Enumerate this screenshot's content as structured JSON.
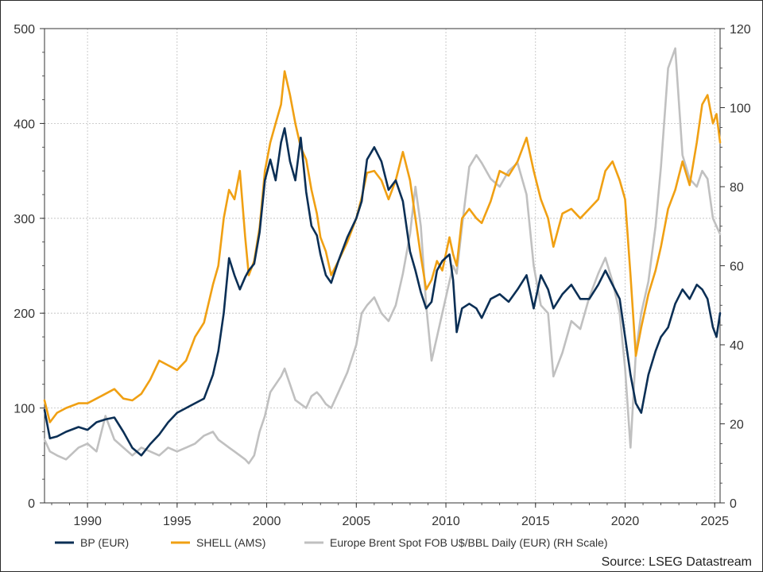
{
  "chart_data": {
    "type": "line",
    "title": "",
    "xlabel": "",
    "ylabel_left": "",
    "ylabel_right": "",
    "xlim": [
      1987.6,
      2025.3
    ],
    "ylim_left": [
      0,
      500
    ],
    "ylim_right": [
      0,
      120
    ],
    "grid": true,
    "legend_position": "bottom",
    "x_ticks": [
      1990,
      1995,
      2000,
      2005,
      2010,
      2015,
      2020,
      2025
    ],
    "x_tick_labels": [
      "1990",
      "1995",
      "2000",
      "2005",
      "2010",
      "2015",
      "2020",
      "2025"
    ],
    "y_left_ticks": [
      0,
      100,
      200,
      300,
      400,
      500
    ],
    "y_left_tick_labels": [
      "0",
      "100",
      "200",
      "300",
      "400",
      "500"
    ],
    "y_right_ticks": [
      0,
      20,
      40,
      60,
      80,
      100,
      120
    ],
    "y_right_tick_labels": [
      "0",
      "20",
      "40",
      "60",
      "80",
      "100",
      "120"
    ],
    "series": [
      {
        "name": "BP (EUR)",
        "axis": "left",
        "color": "#0b2f55",
        "x": [
          1987.6,
          1987.9,
          1988.3,
          1988.8,
          1989.5,
          1990.0,
          1990.5,
          1991.0,
          1991.5,
          1992.0,
          1992.5,
          1993.0,
          1993.5,
          1994.0,
          1994.5,
          1995.0,
          1995.5,
          1996.0,
          1996.5,
          1997.0,
          1997.3,
          1997.6,
          1997.9,
          1998.2,
          1998.5,
          1998.8,
          1999.0,
          1999.3,
          1999.6,
          1999.9,
          2000.2,
          2000.5,
          2000.8,
          2001.0,
          2001.3,
          2001.6,
          2001.9,
          2002.2,
          2002.5,
          2002.8,
          2003.0,
          2003.3,
          2003.6,
          2004.0,
          2004.5,
          2005.0,
          2005.3,
          2005.6,
          2006.0,
          2006.4,
          2006.8,
          2007.2,
          2007.6,
          2008.0,
          2008.3,
          2008.6,
          2008.9,
          2009.2,
          2009.5,
          2009.8,
          2010.2,
          2010.4,
          2010.6,
          2010.9,
          2011.3,
          2011.7,
          2012.0,
          2012.5,
          2013.0,
          2013.5,
          2014.0,
          2014.5,
          2014.9,
          2015.3,
          2015.7,
          2016.0,
          2016.5,
          2017.0,
          2017.5,
          2018.0,
          2018.5,
          2018.9,
          2019.3,
          2019.7,
          2020.0,
          2020.3,
          2020.6,
          2020.9,
          2021.3,
          2021.7,
          2022.0,
          2022.4,
          2022.8,
          2023.2,
          2023.6,
          2024.0,
          2024.3,
          2024.6,
          2024.9,
          2025.1,
          2025.3
        ],
        "y": [
          98,
          68,
          70,
          75,
          80,
          77,
          85,
          88,
          90,
          75,
          58,
          50,
          62,
          72,
          85,
          95,
          100,
          105,
          110,
          135,
          160,
          200,
          258,
          240,
          225,
          238,
          245,
          252,
          285,
          340,
          362,
          340,
          380,
          395,
          360,
          340,
          385,
          328,
          292,
          282,
          262,
          240,
          232,
          255,
          280,
          300,
          318,
          362,
          375,
          360,
          330,
          340,
          318,
          265,
          245,
          222,
          205,
          212,
          245,
          255,
          262,
          235,
          180,
          205,
          210,
          205,
          195,
          215,
          220,
          212,
          225,
          240,
          205,
          240,
          225,
          205,
          220,
          230,
          215,
          215,
          230,
          245,
          230,
          215,
          175,
          135,
          105,
          95,
          135,
          160,
          175,
          185,
          210,
          225,
          215,
          230,
          225,
          215,
          185,
          175,
          200
        ]
      },
      {
        "name": "SHELL (AMS)",
        "axis": "left",
        "color": "#f0a013",
        "x": [
          1987.6,
          1987.9,
          1988.3,
          1988.8,
          1989.5,
          1990.0,
          1990.5,
          1991.0,
          1991.5,
          1992.0,
          1992.5,
          1993.0,
          1993.5,
          1994.0,
          1994.5,
          1995.0,
          1995.5,
          1996.0,
          1996.5,
          1997.0,
          1997.3,
          1997.6,
          1997.9,
          1998.2,
          1998.5,
          1998.8,
          1999.0,
          1999.3,
          1999.6,
          1999.9,
          2000.2,
          2000.5,
          2000.8,
          2001.0,
          2001.3,
          2001.6,
          2001.9,
          2002.2,
          2002.5,
          2002.8,
          2003.0,
          2003.3,
          2003.6,
          2004.0,
          2004.5,
          2005.0,
          2005.3,
          2005.6,
          2006.0,
          2006.4,
          2006.8,
          2007.2,
          2007.6,
          2008.0,
          2008.3,
          2008.6,
          2008.9,
          2009.2,
          2009.5,
          2009.8,
          2010.2,
          2010.4,
          2010.6,
          2010.9,
          2011.3,
          2011.7,
          2012.0,
          2012.5,
          2013.0,
          2013.5,
          2014.0,
          2014.5,
          2014.9,
          2015.3,
          2015.7,
          2016.0,
          2016.5,
          2017.0,
          2017.5,
          2018.0,
          2018.5,
          2018.9,
          2019.3,
          2019.7,
          2020.0,
          2020.3,
          2020.6,
          2020.9,
          2021.3,
          2021.7,
          2022.0,
          2022.4,
          2022.8,
          2023.2,
          2023.6,
          2024.0,
          2024.3,
          2024.6,
          2024.9,
          2025.1,
          2025.3
        ],
        "y": [
          108,
          85,
          95,
          100,
          105,
          105,
          110,
          115,
          120,
          110,
          108,
          115,
          130,
          150,
          145,
          140,
          150,
          175,
          190,
          230,
          250,
          300,
          330,
          320,
          350,
          280,
          240,
          255,
          290,
          350,
          380,
          400,
          420,
          455,
          430,
          400,
          375,
          362,
          330,
          305,
          280,
          265,
          240,
          255,
          275,
          300,
          322,
          348,
          350,
          340,
          320,
          340,
          370,
          340,
          300,
          260,
          225,
          235,
          255,
          245,
          280,
          262,
          250,
          300,
          310,
          300,
          295,
          318,
          350,
          345,
          360,
          385,
          350,
          320,
          300,
          270,
          305,
          310,
          300,
          310,
          320,
          350,
          360,
          340,
          320,
          240,
          155,
          185,
          220,
          245,
          270,
          310,
          330,
          360,
          335,
          380,
          420,
          430,
          400,
          410,
          380
        ]
      },
      {
        "name": "Europe Brent Spot FOB U$/BBL Daily (EUR) (RH Scale)",
        "axis": "right",
        "color": "#c0c0c0",
        "x": [
          1987.6,
          1987.9,
          1988.3,
          1988.8,
          1989.5,
          1990.0,
          1990.5,
          1991.0,
          1991.5,
          1992.0,
          1992.5,
          1993.0,
          1993.5,
          1994.0,
          1994.5,
          1995.0,
          1995.5,
          1996.0,
          1996.5,
          1997.0,
          1997.3,
          1997.6,
          1997.9,
          1998.2,
          1998.5,
          1998.8,
          1999.0,
          1999.3,
          1999.6,
          1999.9,
          2000.2,
          2000.5,
          2000.8,
          2001.0,
          2001.3,
          2001.6,
          2001.9,
          2002.2,
          2002.5,
          2002.8,
          2003.0,
          2003.3,
          2003.6,
          2004.0,
          2004.5,
          2005.0,
          2005.3,
          2005.6,
          2006.0,
          2006.4,
          2006.8,
          2007.2,
          2007.6,
          2008.0,
          2008.3,
          2008.6,
          2008.9,
          2009.2,
          2009.5,
          2009.8,
          2010.2,
          2010.4,
          2010.6,
          2010.9,
          2011.3,
          2011.7,
          2012.0,
          2012.5,
          2013.0,
          2013.5,
          2014.0,
          2014.5,
          2014.9,
          2015.3,
          2015.7,
          2016.0,
          2016.5,
          2017.0,
          2017.5,
          2018.0,
          2018.5,
          2018.9,
          2019.3,
          2019.7,
          2020.0,
          2020.3,
          2020.6,
          2020.9,
          2021.3,
          2021.7,
          2022.0,
          2022.4,
          2022.8,
          2023.2,
          2023.6,
          2024.0,
          2024.3,
          2024.6,
          2024.9,
          2025.1,
          2025.3
        ],
        "y": [
          16,
          13,
          12,
          11,
          14,
          15,
          13,
          22,
          16,
          14,
          12,
          14,
          13,
          12,
          14,
          13,
          14,
          15,
          17,
          18,
          16,
          15,
          14,
          13,
          12,
          11,
          10,
          12,
          18,
          22,
          28,
          30,
          32,
          34,
          30,
          26,
          25,
          24,
          27,
          28,
          27,
          25,
          24,
          28,
          33,
          40,
          48,
          50,
          52,
          48,
          46,
          50,
          58,
          68,
          80,
          70,
          50,
          36,
          42,
          48,
          56,
          60,
          58,
          70,
          85,
          88,
          86,
          82,
          80,
          84,
          86,
          78,
          60,
          50,
          48,
          32,
          38,
          46,
          44,
          52,
          58,
          62,
          56,
          48,
          34,
          14,
          38,
          48,
          56,
          70,
          85,
          110,
          115,
          88,
          82,
          80,
          84,
          82,
          72,
          70,
          68
        ]
      }
    ]
  },
  "legend": {
    "bp_label": "BP (EUR)",
    "shell_label": "SHELL (AMS)",
    "brent_label": "Europe Brent Spot FOB U$/BBL Daily (EUR) (RH Scale)"
  },
  "source_text": "Source: LSEG Datastream"
}
